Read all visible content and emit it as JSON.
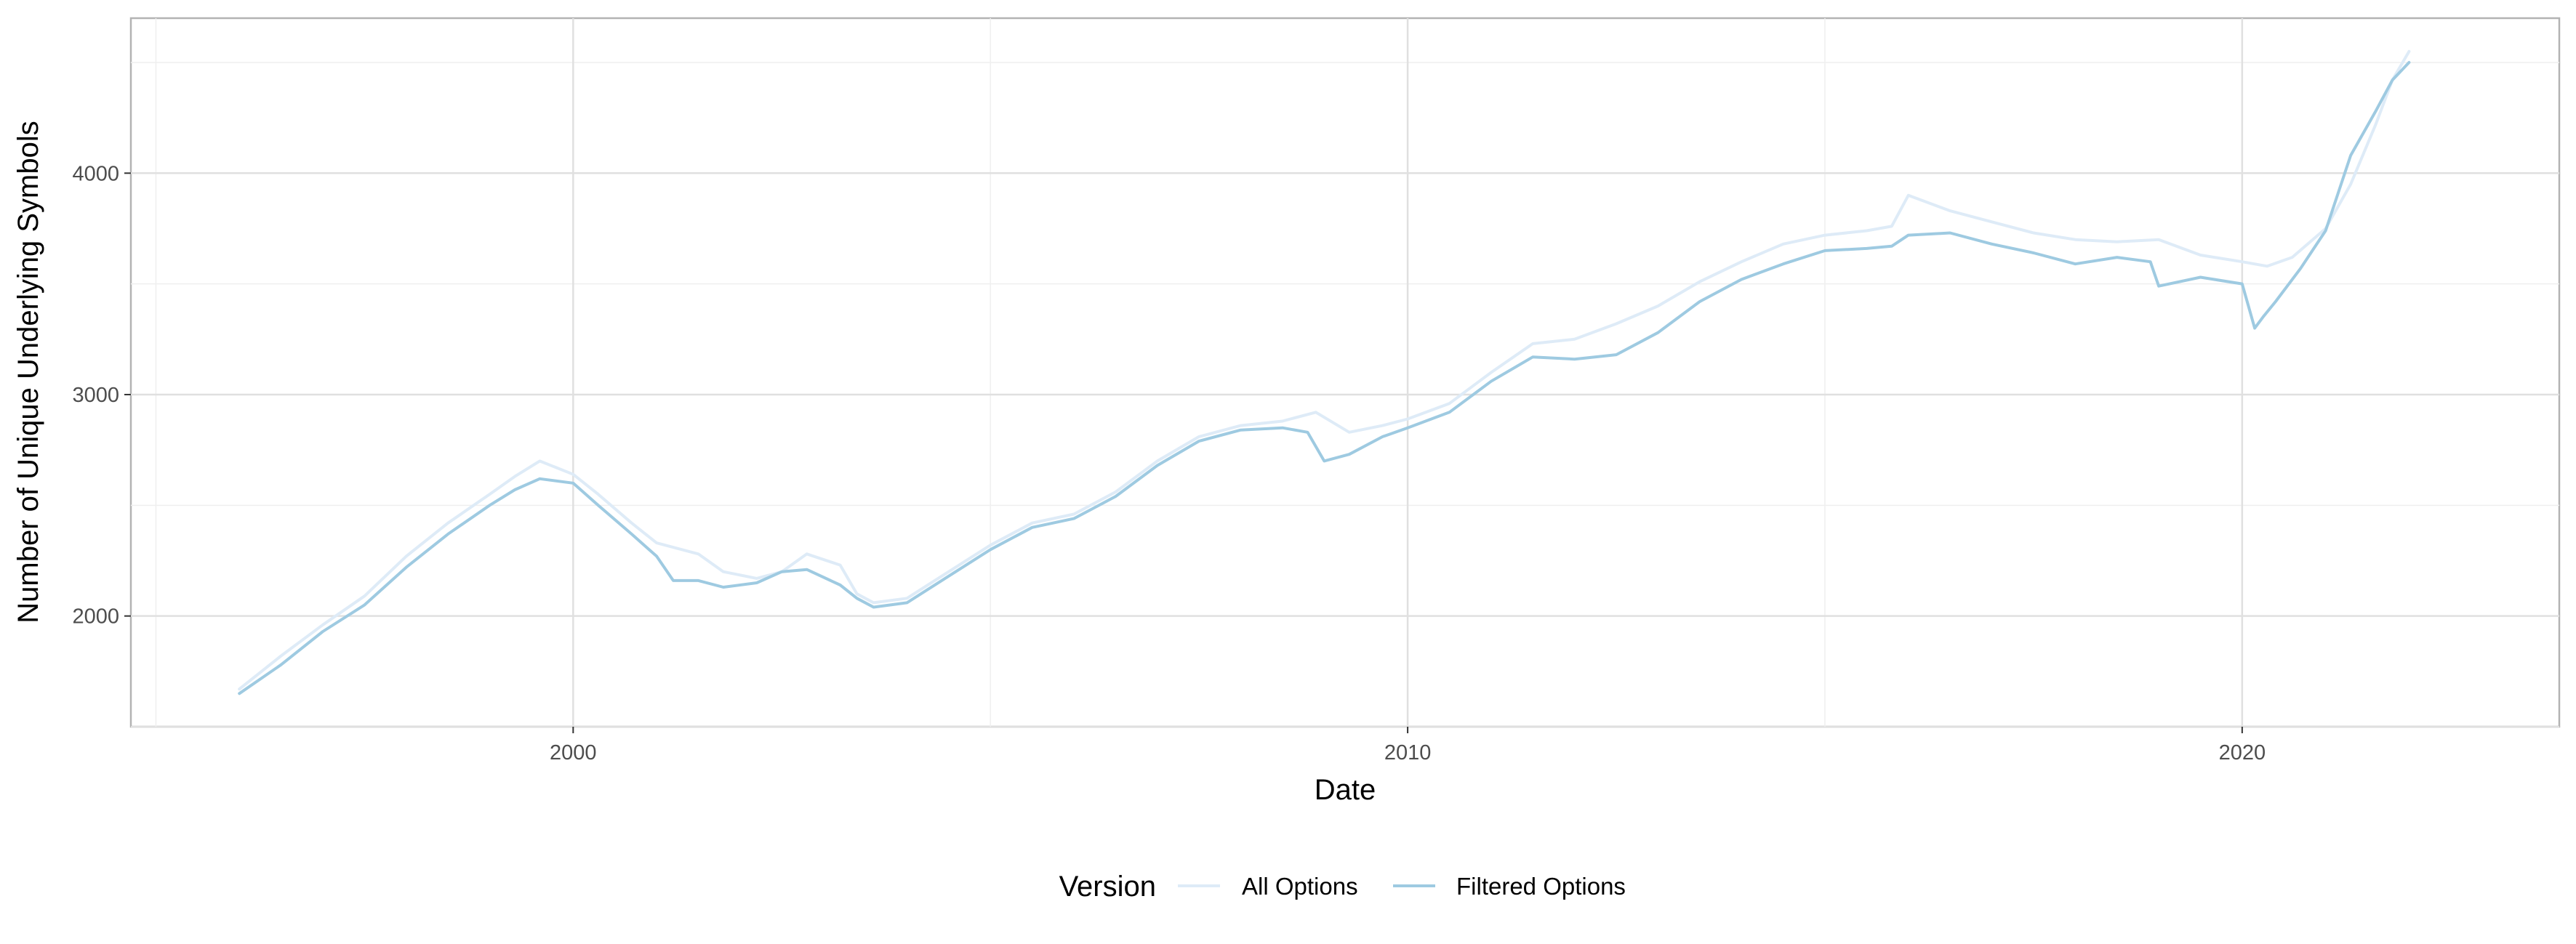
{
  "chart_data": {
    "type": "line",
    "title": "",
    "xlabel": "Date",
    "ylabel": "Number of Unique Underlying Symbols",
    "xlim": [
      1994.7,
      2023.8
    ],
    "ylim": [
      1500,
      4700
    ],
    "x_ticks": [
      2000,
      2010,
      2020
    ],
    "x_tick_labels": [
      "2000",
      "2010",
      "2020"
    ],
    "y_ticks": [
      2000,
      3000,
      4000
    ],
    "y_tick_labels": [
      "2000",
      "3000",
      "4000"
    ],
    "grid": true,
    "legend": {
      "title": "Version",
      "position": "bottom"
    },
    "series": [
      {
        "name": "All Options",
        "color": "#deebf7",
        "x": [
          1996.0,
          1996.5,
          1997.0,
          1997.5,
          1998.0,
          1998.5,
          1999.0,
          1999.3,
          1999.6,
          2000.0,
          2000.3,
          2000.7,
          2001.0,
          2001.5,
          2001.8,
          2002.2,
          2002.5,
          2002.8,
          2003.2,
          2003.4,
          2003.6,
          2004.0,
          2004.5,
          2005.0,
          2005.5,
          2006.0,
          2006.5,
          2007.0,
          2007.5,
          2008.0,
          2008.5,
          2008.9,
          2009.3,
          2009.7,
          2010.0,
          2010.5,
          2011.0,
          2011.5,
          2012.0,
          2012.5,
          2013.0,
          2013.5,
          2014.0,
          2014.5,
          2015.0,
          2015.5,
          2015.8,
          2016.0,
          2016.5,
          2017.0,
          2017.5,
          2018.0,
          2018.5,
          2019.0,
          2019.5,
          2020.0,
          2020.3,
          2020.6,
          2021.0,
          2021.3,
          2021.6,
          2021.8,
          2022.0
        ],
        "values": [
          1670,
          1820,
          1960,
          2090,
          2270,
          2420,
          2550,
          2630,
          2700,
          2640,
          2550,
          2420,
          2330,
          2280,
          2200,
          2170,
          2200,
          2280,
          2230,
          2100,
          2060,
          2080,
          2200,
          2320,
          2420,
          2460,
          2560,
          2700,
          2810,
          2860,
          2880,
          2920,
          2830,
          2860,
          2890,
          2960,
          3100,
          3230,
          3250,
          3320,
          3400,
          3510,
          3600,
          3680,
          3720,
          3740,
          3760,
          3900,
          3830,
          3780,
          3730,
          3700,
          3690,
          3700,
          3630,
          3600,
          3580,
          3620,
          3750,
          3950,
          4220,
          4420,
          4550
        ]
      },
      {
        "name": "Filtered Options",
        "color": "#9ecae1",
        "x": [
          1996.0,
          1996.5,
          1997.0,
          1997.5,
          1998.0,
          1998.5,
          1999.0,
          1999.3,
          1999.6,
          2000.0,
          2000.3,
          2000.7,
          2001.0,
          2001.2,
          2001.5,
          2001.8,
          2002.2,
          2002.5,
          2002.8,
          2003.2,
          2003.4,
          2003.6,
          2004.0,
          2004.5,
          2005.0,
          2005.5,
          2006.0,
          2006.5,
          2007.0,
          2007.5,
          2008.0,
          2008.5,
          2008.8,
          2009.0,
          2009.3,
          2009.7,
          2010.0,
          2010.5,
          2011.0,
          2011.5,
          2012.0,
          2012.5,
          2013.0,
          2013.5,
          2014.0,
          2014.5,
          2015.0,
          2015.5,
          2015.8,
          2016.0,
          2016.5,
          2017.0,
          2017.5,
          2018.0,
          2018.5,
          2018.9,
          2019.0,
          2019.5,
          2020.0,
          2020.15,
          2020.25,
          2020.4,
          2020.7,
          2021.0,
          2021.3,
          2021.6,
          2021.8,
          2022.0
        ],
        "values": [
          1650,
          1780,
          1930,
          2050,
          2220,
          2370,
          2500,
          2570,
          2620,
          2600,
          2500,
          2370,
          2270,
          2160,
          2160,
          2130,
          2150,
          2200,
          2210,
          2140,
          2080,
          2040,
          2060,
          2180,
          2300,
          2400,
          2440,
          2540,
          2680,
          2790,
          2840,
          2850,
          2830,
          2700,
          2730,
          2810,
          2850,
          2920,
          3060,
          3170,
          3160,
          3180,
          3280,
          3420,
          3520,
          3590,
          3650,
          3660,
          3670,
          3720,
          3730,
          3680,
          3640,
          3590,
          3620,
          3600,
          3490,
          3530,
          3500,
          3300,
          3350,
          3420,
          3570,
          3740,
          4080,
          4280,
          4420,
          4500
        ]
      }
    ]
  }
}
